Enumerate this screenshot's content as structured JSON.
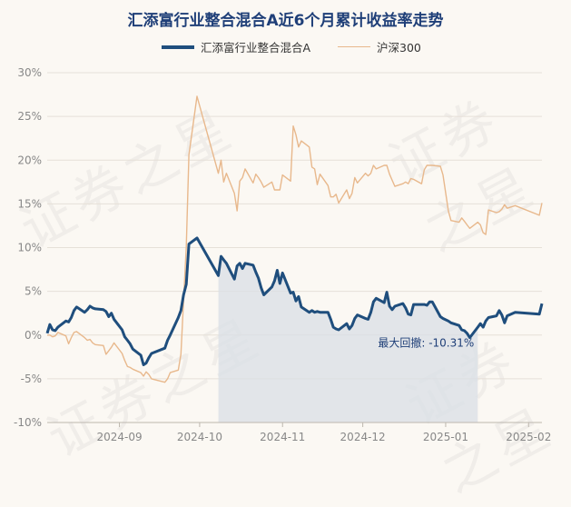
{
  "title": "汇添富行业整合混合A近6个月累计收益率走势",
  "watermark": "证券之星",
  "colors": {
    "fund": "#1f4e7d",
    "index": "#e8b88c",
    "grid": "#e6e0d8",
    "text": "#888888",
    "area": "#d9dfe6"
  },
  "chart_data": {
    "type": "line",
    "title": "汇添富行业整合混合A近6个月累计收益率走势",
    "xlabel": "",
    "ylabel": "",
    "ylim": [
      -10,
      30
    ],
    "ytick_labels": [
      "30%",
      "25%",
      "20%",
      "15%",
      "10%",
      "5%",
      "0%",
      "-5%",
      "-10%"
    ],
    "yticks": [
      30,
      25,
      20,
      15,
      10,
      5,
      0,
      -5,
      -10
    ],
    "x_range": [
      "2024-08-05",
      "2025-02-06"
    ],
    "xtick_labels": [
      "2024-09",
      "2024-10",
      "2024-11",
      "2024-12",
      "2025-01",
      "2025-02"
    ],
    "xticks": [
      "2024-09-01",
      "2024-10-01",
      "2024-11-01",
      "2024-12-01",
      "2025-01-01",
      "2025-02-01"
    ],
    "grid": true,
    "legend_position": "top",
    "drawdown": {
      "label": "最大回撤: -10.31%",
      "start": "2024-10-08",
      "end": "2025-01-13"
    },
    "series": [
      {
        "name": "汇添富行业整合混合A",
        "dates": [
          "2024-08-05",
          "2024-08-06",
          "2024-08-07",
          "2024-08-08",
          "2024-08-09",
          "2024-08-12",
          "2024-08-13",
          "2024-08-14",
          "2024-08-15",
          "2024-08-16",
          "2024-08-19",
          "2024-08-20",
          "2024-08-21",
          "2024-08-22",
          "2024-08-23",
          "2024-08-26",
          "2024-08-27",
          "2024-08-28",
          "2024-08-29",
          "2024-08-30",
          "2024-09-02",
          "2024-09-03",
          "2024-09-04",
          "2024-09-05",
          "2024-09-06",
          "2024-09-09",
          "2024-09-10",
          "2024-09-11",
          "2024-09-12",
          "2024-09-13",
          "2024-09-18",
          "2024-09-19",
          "2024-09-20",
          "2024-09-23",
          "2024-09-24",
          "2024-09-25",
          "2024-09-26",
          "2024-09-27",
          "2024-09-30",
          "2024-10-08",
          "2024-10-09",
          "2024-10-10",
          "2024-10-11",
          "2024-10-14",
          "2024-10-15",
          "2024-10-16",
          "2024-10-17",
          "2024-10-18",
          "2024-10-21",
          "2024-10-22",
          "2024-10-23",
          "2024-10-24",
          "2024-10-25",
          "2024-10-28",
          "2024-10-29",
          "2024-10-30",
          "2024-10-31",
          "2024-11-01",
          "2024-11-04",
          "2024-11-05",
          "2024-11-06",
          "2024-11-07",
          "2024-11-08",
          "2024-11-11",
          "2024-11-12",
          "2024-11-13",
          "2024-11-14",
          "2024-11-15",
          "2024-11-18",
          "2024-11-19",
          "2024-11-20",
          "2024-11-21",
          "2024-11-22",
          "2024-11-25",
          "2024-11-26",
          "2024-11-27",
          "2024-11-28",
          "2024-11-29",
          "2024-12-02",
          "2024-12-03",
          "2024-12-04",
          "2024-12-05",
          "2024-12-06",
          "2024-12-09",
          "2024-12-10",
          "2024-12-11",
          "2024-12-12",
          "2024-12-13",
          "2024-12-16",
          "2024-12-17",
          "2024-12-18",
          "2024-12-19",
          "2024-12-20",
          "2024-12-23",
          "2024-12-24",
          "2024-12-25",
          "2024-12-26",
          "2024-12-27",
          "2024-12-30",
          "2024-12-31",
          "2025-01-02",
          "2025-01-03",
          "2025-01-06",
          "2025-01-07",
          "2025-01-08",
          "2025-01-09",
          "2025-01-10",
          "2025-01-13",
          "2025-01-14",
          "2025-01-15",
          "2025-01-16",
          "2025-01-17",
          "2025-01-20",
          "2025-01-21",
          "2025-01-22",
          "2025-01-23",
          "2025-01-24",
          "2025-01-27",
          "2025-02-05",
          "2025-02-06"
        ],
        "values": [
          0.2,
          1.2,
          0.6,
          0.5,
          0.9,
          1.6,
          1.5,
          2.0,
          2.8,
          3.2,
          2.6,
          2.9,
          3.3,
          3.1,
          3.0,
          2.9,
          2.7,
          2.1,
          2.5,
          1.8,
          0.6,
          -0.2,
          -0.6,
          -1.0,
          -1.6,
          -2.3,
          -3.4,
          -3.2,
          -2.6,
          -2.1,
          -1.5,
          -0.6,
          0.0,
          2.0,
          2.8,
          4.6,
          5.8,
          10.4,
          11.1,
          6.8,
          9.0,
          8.6,
          8.2,
          6.4,
          7.9,
          8.2,
          7.6,
          8.2,
          8.0,
          7.2,
          6.5,
          5.4,
          4.6,
          5.5,
          6.2,
          7.4,
          5.9,
          7.1,
          4.8,
          4.9,
          3.9,
          4.4,
          3.2,
          2.6,
          2.8,
          2.6,
          2.7,
          2.6,
          2.6,
          1.8,
          0.9,
          0.7,
          0.6,
          1.3,
          0.7,
          1.1,
          1.9,
          2.3,
          1.9,
          1.8,
          2.6,
          3.8,
          4.2,
          3.7,
          4.9,
          3.3,
          2.9,
          3.3,
          3.6,
          3.1,
          2.4,
          2.3,
          3.5,
          3.5,
          3.5,
          3.4,
          3.8,
          3.8,
          2.1,
          1.9,
          1.6,
          1.4,
          1.1,
          0.6,
          0.5,
          0.2,
          -0.3,
          0.9,
          1.3,
          0.9,
          1.6,
          2.0,
          2.2,
          2.8,
          2.3,
          1.4,
          2.2,
          2.6,
          2.4,
          3.6
        ]
      },
      {
        "name": "沪深300",
        "dates": [
          "2024-08-05",
          "2024-08-06",
          "2024-08-07",
          "2024-08-08",
          "2024-08-09",
          "2024-08-12",
          "2024-08-13",
          "2024-08-14",
          "2024-08-15",
          "2024-08-16",
          "2024-08-19",
          "2024-08-20",
          "2024-08-21",
          "2024-08-22",
          "2024-08-23",
          "2024-08-26",
          "2024-08-27",
          "2024-08-28",
          "2024-08-29",
          "2024-08-30",
          "2024-09-02",
          "2024-09-03",
          "2024-09-04",
          "2024-09-05",
          "2024-09-06",
          "2024-09-09",
          "2024-09-10",
          "2024-09-11",
          "2024-09-12",
          "2024-09-13",
          "2024-09-18",
          "2024-09-19",
          "2024-09-20",
          "2024-09-23",
          "2024-09-24",
          "2024-09-25",
          "2024-09-26",
          "2024-09-27",
          "2024-09-30",
          "2024-10-08",
          "2024-10-09",
          "2024-10-10",
          "2024-10-11",
          "2024-10-14",
          "2024-10-15",
          "2024-10-16",
          "2024-10-17",
          "2024-10-18",
          "2024-10-21",
          "2024-10-22",
          "2024-10-23",
          "2024-10-24",
          "2024-10-25",
          "2024-10-28",
          "2024-10-29",
          "2024-10-30",
          "2024-10-31",
          "2024-11-01",
          "2024-11-04",
          "2024-11-05",
          "2024-11-06",
          "2024-11-07",
          "2024-11-08",
          "2024-11-11",
          "2024-11-12",
          "2024-11-13",
          "2024-11-14",
          "2024-11-15",
          "2024-11-18",
          "2024-11-19",
          "2024-11-20",
          "2024-11-21",
          "2024-11-22",
          "2024-11-25",
          "2024-11-26",
          "2024-11-27",
          "2024-11-28",
          "2024-11-29",
          "2024-12-02",
          "2024-12-03",
          "2024-12-04",
          "2024-12-05",
          "2024-12-06",
          "2024-12-09",
          "2024-12-10",
          "2024-12-11",
          "2024-12-12",
          "2024-12-13",
          "2024-12-16",
          "2024-12-17",
          "2024-12-18",
          "2024-12-19",
          "2024-12-20",
          "2024-12-23",
          "2024-12-24",
          "2024-12-25",
          "2024-12-26",
          "2024-12-27",
          "2024-12-30",
          "2024-12-31",
          "2025-01-02",
          "2025-01-03",
          "2025-01-06",
          "2025-01-07",
          "2025-01-08",
          "2025-01-09",
          "2025-01-10",
          "2025-01-13",
          "2025-01-14",
          "2025-01-15",
          "2025-01-16",
          "2025-01-17",
          "2025-01-20",
          "2025-01-21",
          "2025-01-22",
          "2025-01-23",
          "2025-01-24",
          "2025-01-27",
          "2025-02-05",
          "2025-02-06"
        ],
        "values": [
          0.0,
          0.0,
          -0.2,
          -0.1,
          0.3,
          -0.1,
          -1.0,
          -0.3,
          0.3,
          0.4,
          -0.3,
          -0.6,
          -0.5,
          -0.9,
          -1.1,
          -1.2,
          -2.2,
          -1.8,
          -1.4,
          -0.9,
          -2.1,
          -2.9,
          -3.6,
          -3.7,
          -3.9,
          -4.3,
          -4.7,
          -4.2,
          -4.5,
          -5.0,
          -5.4,
          -5.0,
          -4.3,
          -4.0,
          -2.2,
          3.9,
          10.1,
          20.6,
          27.3,
          18.5,
          20.0,
          17.5,
          18.5,
          16.2,
          14.2,
          17.6,
          18.0,
          19.0,
          17.4,
          18.4,
          18.0,
          17.5,
          16.9,
          17.5,
          16.6,
          16.6,
          16.6,
          18.3,
          17.6,
          23.9,
          22.9,
          21.5,
          22.2,
          21.5,
          19.2,
          19.0,
          17.2,
          18.4,
          17.1,
          15.8,
          15.8,
          16.1,
          15.1,
          16.6,
          15.6,
          16.2,
          18.0,
          17.4,
          18.5,
          18.2,
          18.5,
          19.4,
          19.0,
          19.4,
          19.4,
          18.4,
          17.7,
          17.0,
          17.3,
          17.5,
          17.3,
          17.9,
          17.8,
          17.3,
          18.9,
          19.4,
          19.4,
          19.4,
          19.3,
          18.3,
          14.2,
          13.1,
          12.9,
          13.4,
          13.0,
          12.6,
          12.2,
          12.9,
          12.6,
          11.7,
          11.5,
          14.3,
          14.0,
          14.1,
          14.4,
          14.9,
          14.5,
          14.8,
          13.7,
          15.1
        ]
      }
    ]
  }
}
